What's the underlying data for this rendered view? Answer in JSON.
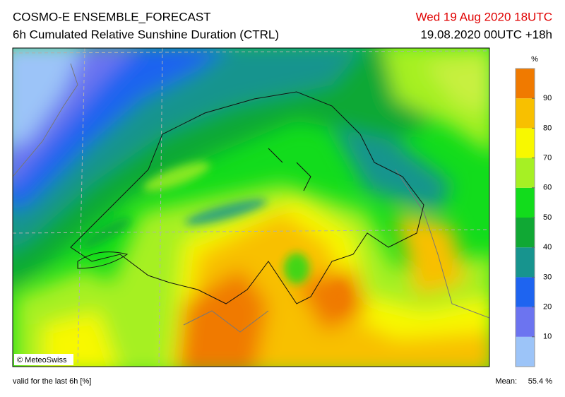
{
  "header": {
    "title": "COSMO-E ENSEMBLE_FORECAST",
    "subtitle": "6h Cumulated Relative Sunshine Duration (CTRL)",
    "valid_time": "Wed 19 Aug 2020 18UTC",
    "run": "19.08.2020 00UTC +18h"
  },
  "colorbar": {
    "unit": "%",
    "ticks": [
      10,
      20,
      30,
      40,
      50,
      60,
      70,
      80,
      90
    ],
    "colors": [
      "#9cc4f8",
      "#6c74f0",
      "#1e64f0",
      "#17948e",
      "#10a834",
      "#12dc1c",
      "#a6f024",
      "#f8f800",
      "#f8c000",
      "#f07a00"
    ]
  },
  "map": {
    "credit": "© MeteoSwiss"
  },
  "footer": {
    "note": "valid for the last 6h [%]",
    "mean_label": "Mean:",
    "mean_value": "55.4 %"
  }
}
